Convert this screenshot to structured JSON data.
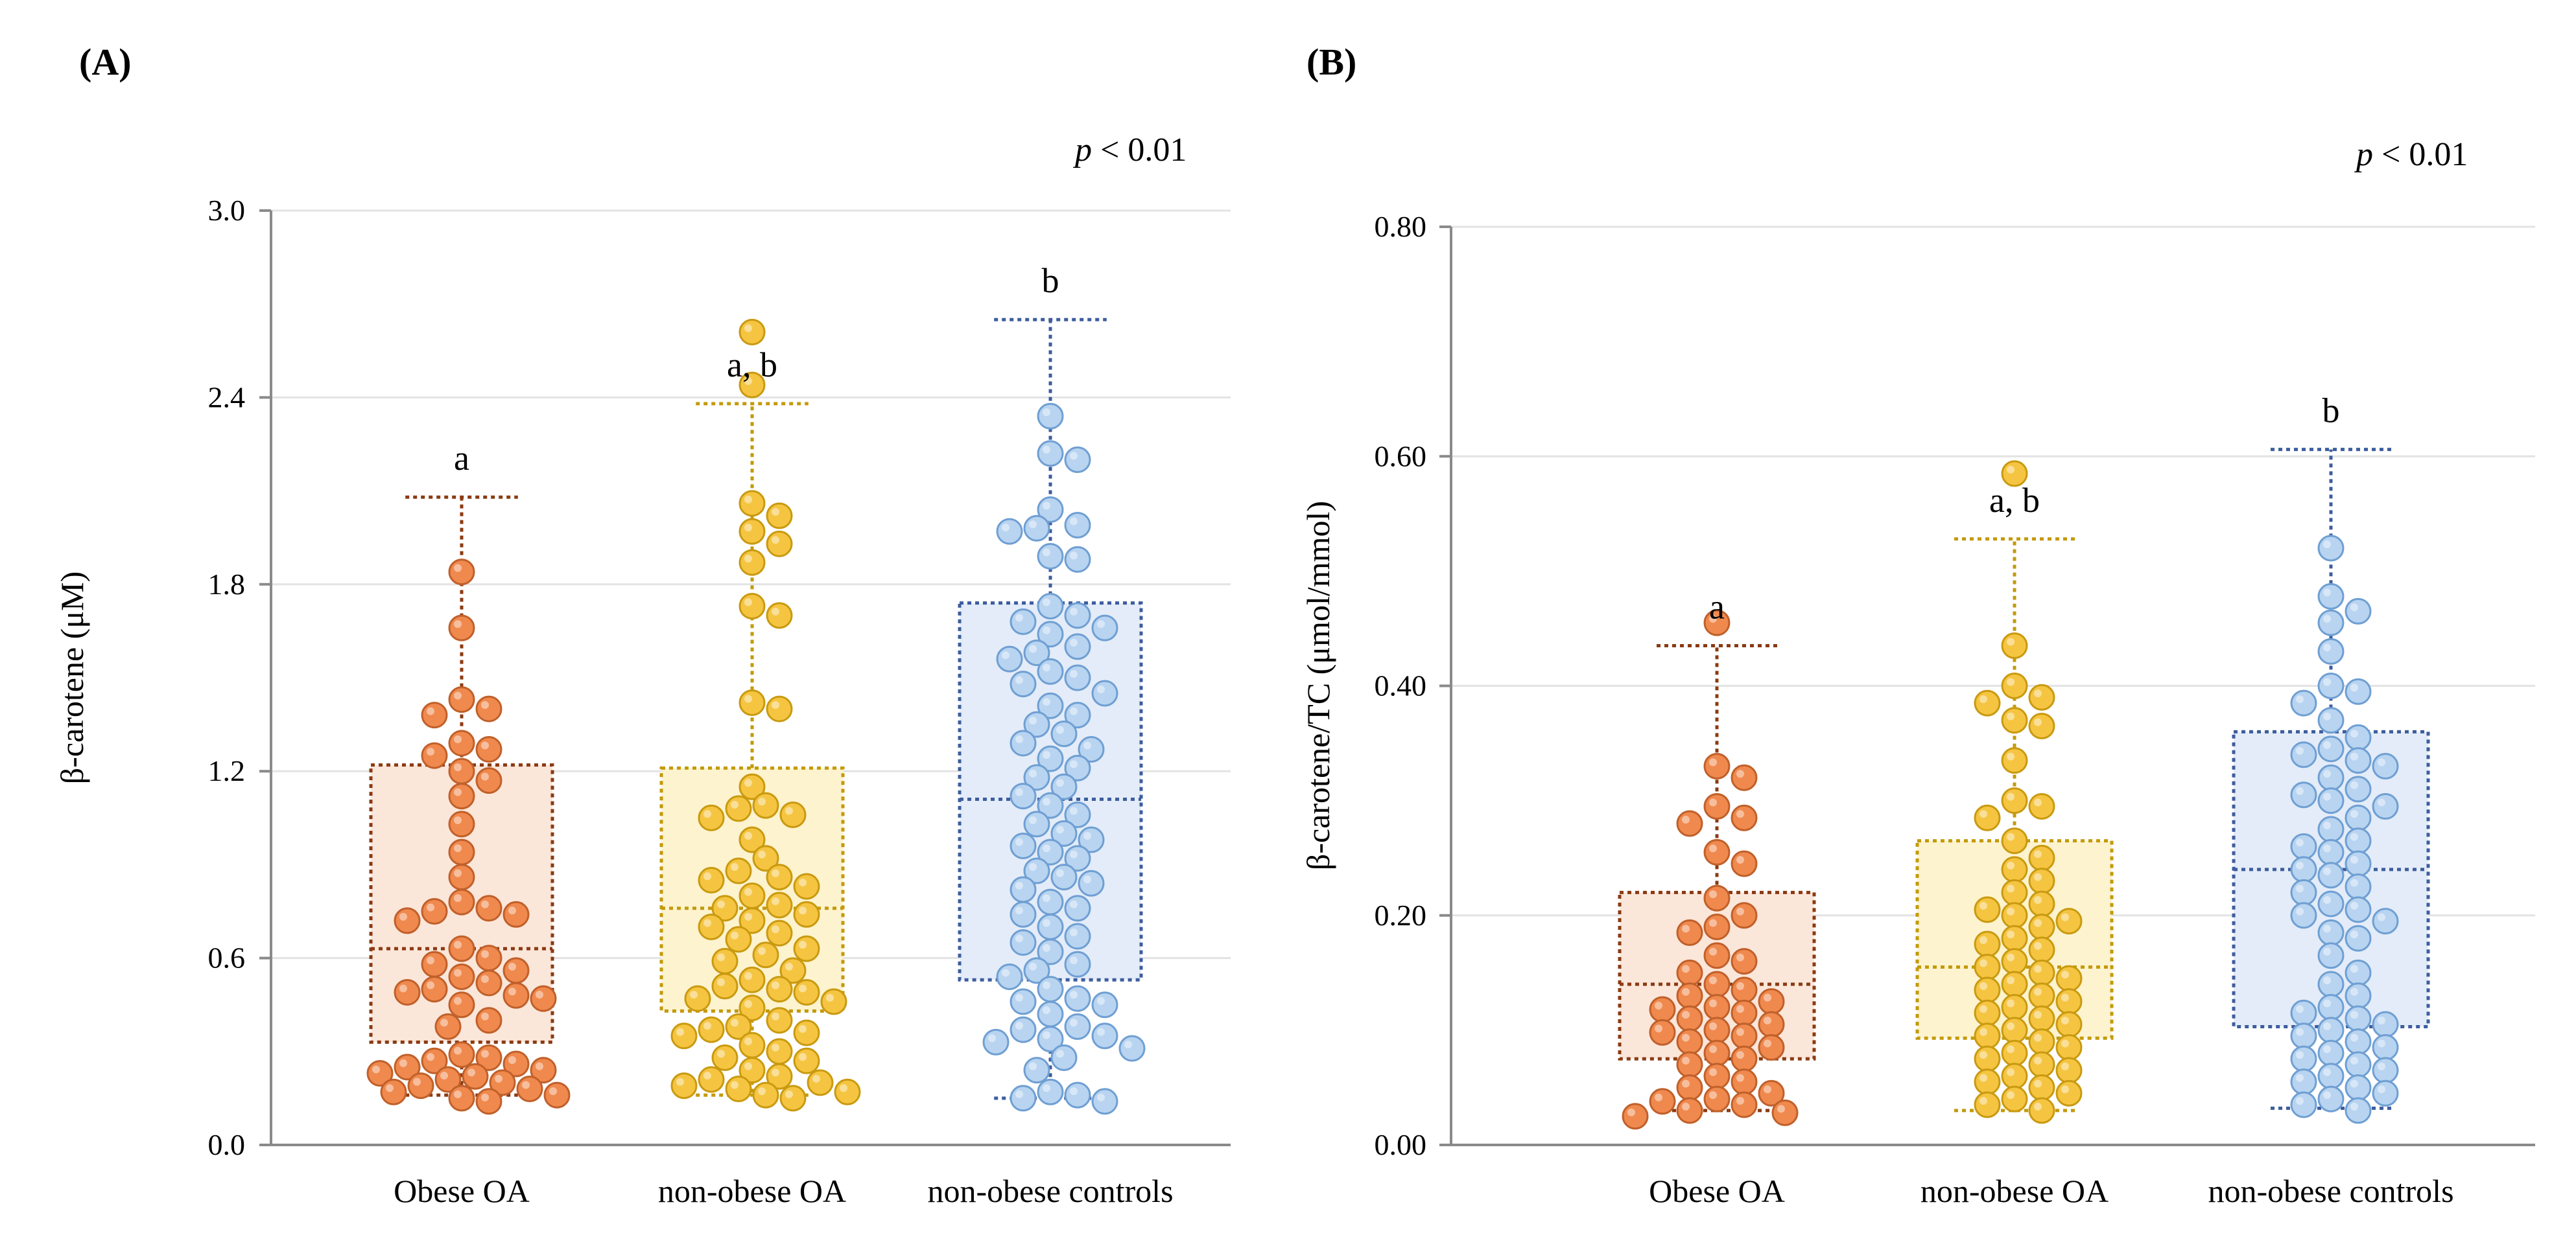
{
  "colors": {
    "obese_OA": {
      "fill": "#f0894e",
      "stroke": "#c0602a",
      "box_fill": "#fbe6da",
      "box_line": "#8b3a12"
    },
    "non_obese_OA": {
      "fill": "#f5c542",
      "stroke": "#c99a10",
      "box_fill": "#fdf3cf",
      "box_line": "#c39a0a"
    },
    "non_obese_controls": {
      "fill": "#b8d4f0",
      "stroke": "#6f9fd3",
      "box_fill": "#e3ecf8",
      "box_line": "#3d5d9e"
    }
  },
  "chart_data": [
    {
      "type": "box-dot",
      "panel_label": "(A)",
      "p_text": {
        "italic": "p",
        "rest": " < 0.01"
      },
      "ylabel": "β-carotene (μM)",
      "xlabel": "",
      "ylim": [
        0,
        3.0
      ],
      "yticks": [
        0,
        0.6,
        1.2,
        1.8,
        2.4,
        3.0
      ],
      "ytick_labels": [
        "0.0",
        "0.6",
        "1.2",
        "1.8",
        "2.4",
        "3.0"
      ],
      "grid": true,
      "categories": [
        "Obese OA",
        "non-obese OA",
        "non-obese controls"
      ],
      "series": [
        {
          "name": "Obese OA",
          "color_key": "obese_OA",
          "significance": "a",
          "box": {
            "whisker_low": 0.16,
            "q1": 0.33,
            "median": 0.63,
            "q3": 1.22,
            "whisker_high": 2.08
          },
          "points": [
            1.84,
            1.66,
            1.43,
            1.4,
            1.38,
            1.29,
            1.27,
            1.25,
            1.2,
            1.17,
            1.12,
            1.03,
            0.94,
            0.86,
            0.78,
            0.76,
            0.75,
            0.74,
            0.72,
            0.63,
            0.6,
            0.58,
            0.56,
            0.54,
            0.52,
            0.5,
            0.49,
            0.48,
            0.47,
            0.45,
            0.4,
            0.38,
            0.29,
            0.28,
            0.27,
            0.26,
            0.25,
            0.24,
            0.23,
            0.22,
            0.21,
            0.2,
            0.19,
            0.18,
            0.17,
            0.16,
            0.15,
            0.14
          ]
        },
        {
          "name": "non-obese OA",
          "color_key": "non_obese_OA",
          "significance": "a, b",
          "box": {
            "whisker_low": 0.16,
            "q1": 0.43,
            "median": 0.76,
            "q3": 1.21,
            "whisker_high": 2.38
          },
          "points": [
            2.61,
            2.44,
            2.06,
            2.02,
            1.97,
            1.93,
            1.87,
            1.73,
            1.7,
            1.42,
            1.4,
            1.15,
            1.09,
            1.08,
            1.06,
            1.05,
            0.98,
            0.92,
            0.88,
            0.86,
            0.85,
            0.83,
            0.8,
            0.77,
            0.76,
            0.74,
            0.72,
            0.7,
            0.68,
            0.66,
            0.63,
            0.61,
            0.59,
            0.56,
            0.53,
            0.51,
            0.5,
            0.49,
            0.47,
            0.46,
            0.44,
            0.4,
            0.38,
            0.37,
            0.36,
            0.35,
            0.32,
            0.3,
            0.28,
            0.27,
            0.24,
            0.22,
            0.21,
            0.2,
            0.19,
            0.18,
            0.17,
            0.16,
            0.15
          ]
        },
        {
          "name": "non-obese controls",
          "color_key": "non_obese_controls",
          "significance": "b",
          "box": {
            "whisker_low": 0.15,
            "q1": 0.53,
            "median": 1.11,
            "q3": 1.74,
            "whisker_high": 2.65
          },
          "points": [
            2.34,
            2.22,
            2.2,
            2.04,
            1.99,
            1.98,
            1.97,
            1.89,
            1.88,
            1.73,
            1.7,
            1.68,
            1.66,
            1.64,
            1.6,
            1.58,
            1.56,
            1.52,
            1.5,
            1.48,
            1.45,
            1.41,
            1.38,
            1.35,
            1.32,
            1.29,
            1.27,
            1.24,
            1.21,
            1.18,
            1.15,
            1.12,
            1.09,
            1.06,
            1.03,
            1.0,
            0.98,
            0.96,
            0.94,
            0.92,
            0.88,
            0.86,
            0.84,
            0.82,
            0.78,
            0.76,
            0.74,
            0.7,
            0.67,
            0.65,
            0.62,
            0.58,
            0.56,
            0.54,
            0.5,
            0.47,
            0.46,
            0.45,
            0.42,
            0.38,
            0.37,
            0.35,
            0.34,
            0.33,
            0.31,
            0.28,
            0.24,
            0.17,
            0.16,
            0.15,
            0.14
          ]
        }
      ]
    },
    {
      "type": "box-dot",
      "panel_label": "(B)",
      "p_text": {
        "italic": "p",
        "rest": " < 0.01"
      },
      "ylabel": "β-carotene/TC (μmol/mmol)",
      "xlabel": "",
      "ylim": [
        0,
        0.8
      ],
      "yticks": [
        0,
        0.2,
        0.4,
        0.6,
        0.8
      ],
      "ytick_labels": [
        "0.00",
        "0.20",
        "0.40",
        "0.60",
        "0.80"
      ],
      "grid": true,
      "categories": [
        "Obese OA",
        "non-obese OA",
        "non-obese controls"
      ],
      "series": [
        {
          "name": "Obese OA",
          "color_key": "obese_OA",
          "significance": "a",
          "box": {
            "whisker_low": 0.03,
            "q1": 0.075,
            "median": 0.14,
            "q3": 0.22,
            "whisker_high": 0.435
          },
          "points": [
            0.455,
            0.33,
            0.32,
            0.295,
            0.285,
            0.28,
            0.255,
            0.245,
            0.215,
            0.2,
            0.19,
            0.185,
            0.165,
            0.16,
            0.15,
            0.14,
            0.135,
            0.13,
            0.125,
            0.12,
            0.118,
            0.115,
            0.11,
            0.105,
            0.1,
            0.098,
            0.095,
            0.09,
            0.085,
            0.08,
            0.075,
            0.07,
            0.06,
            0.055,
            0.05,
            0.045,
            0.04,
            0.038,
            0.035,
            0.03,
            0.028,
            0.025
          ]
        },
        {
          "name": "non-obese OA",
          "color_key": "non_obese_OA",
          "significance": "a, b",
          "box": {
            "whisker_low": 0.03,
            "q1": 0.093,
            "median": 0.155,
            "q3": 0.265,
            "whisker_high": 0.528
          },
          "points": [
            0.585,
            0.435,
            0.4,
            0.39,
            0.385,
            0.37,
            0.365,
            0.335,
            0.3,
            0.295,
            0.285,
            0.265,
            0.25,
            0.24,
            0.23,
            0.22,
            0.21,
            0.205,
            0.2,
            0.195,
            0.19,
            0.18,
            0.175,
            0.17,
            0.16,
            0.155,
            0.15,
            0.145,
            0.14,
            0.135,
            0.13,
            0.125,
            0.12,
            0.115,
            0.11,
            0.105,
            0.1,
            0.095,
            0.09,
            0.085,
            0.08,
            0.075,
            0.07,
            0.065,
            0.06,
            0.055,
            0.05,
            0.045,
            0.04,
            0.035,
            0.03
          ]
        },
        {
          "name": "non-obese controls",
          "color_key": "non_obese_controls",
          "significance": "b",
          "box": {
            "whisker_low": 0.032,
            "q1": 0.103,
            "median": 0.24,
            "q3": 0.36,
            "whisker_high": 0.606
          },
          "points": [
            0.52,
            0.478,
            0.465,
            0.455,
            0.43,
            0.4,
            0.395,
            0.385,
            0.37,
            0.355,
            0.345,
            0.34,
            0.335,
            0.33,
            0.32,
            0.31,
            0.305,
            0.3,
            0.295,
            0.285,
            0.275,
            0.265,
            0.26,
            0.255,
            0.245,
            0.24,
            0.235,
            0.225,
            0.22,
            0.21,
            0.205,
            0.2,
            0.195,
            0.185,
            0.18,
            0.165,
            0.15,
            0.14,
            0.13,
            0.12,
            0.115,
            0.11,
            0.105,
            0.1,
            0.095,
            0.09,
            0.085,
            0.08,
            0.075,
            0.07,
            0.065,
            0.06,
            0.055,
            0.05,
            0.045,
            0.04,
            0.035,
            0.03
          ]
        }
      ]
    }
  ]
}
